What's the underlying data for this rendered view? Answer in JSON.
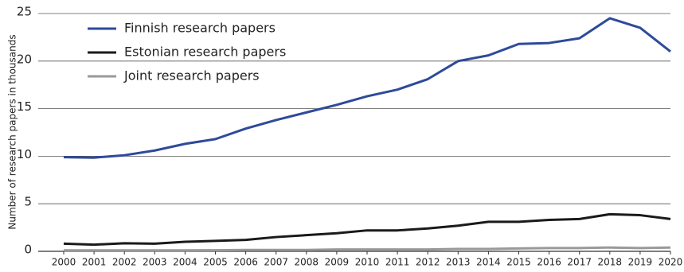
{
  "chart_data": {
    "type": "line",
    "y_label": "Number of research papers in thousands",
    "x": [
      2000,
      2001,
      2002,
      2003,
      2004,
      2005,
      2006,
      2007,
      2008,
      2009,
      2010,
      2011,
      2012,
      2013,
      2014,
      2015,
      2016,
      2017,
      2018,
      2019,
      2020
    ],
    "xlim": [
      2000,
      2020
    ],
    "xticks": [
      2000,
      2001,
      2002,
      2003,
      2004,
      2005,
      2006,
      2007,
      2008,
      2009,
      2010,
      2011,
      2012,
      2013,
      2014,
      2015,
      2016,
      2017,
      2018,
      2019,
      2020
    ],
    "ylim": [
      0,
      25
    ],
    "yticks": [
      0,
      5,
      10,
      15,
      20,
      25
    ],
    "grid": true,
    "legend": "upper left",
    "series": [
      {
        "name": "Finnish research papers",
        "color": "#2e4a9a",
        "values": [
          9.9,
          9.85,
          10.1,
          10.6,
          11.3,
          11.8,
          12.9,
          13.8,
          14.6,
          15.4,
          16.3,
          17.0,
          18.1,
          20.0,
          20.6,
          21.8,
          21.9,
          22.4,
          24.5,
          23.5,
          21.0
        ]
      },
      {
        "name": "Estonian research papers",
        "color": "#1a1a1a",
        "values": [
          0.8,
          0.7,
          0.85,
          0.8,
          1.0,
          1.1,
          1.2,
          1.5,
          1.7,
          1.9,
          2.2,
          2.2,
          2.4,
          2.7,
          3.1,
          3.1,
          3.3,
          3.4,
          3.9,
          3.8,
          3.4
        ]
      },
      {
        "name": "Joint research papers",
        "color": "#999999",
        "values": [
          0.1,
          0.1,
          0.1,
          0.1,
          0.1,
          0.12,
          0.15,
          0.15,
          0.15,
          0.2,
          0.2,
          0.2,
          0.2,
          0.25,
          0.25,
          0.3,
          0.35,
          0.35,
          0.4,
          0.35,
          0.4
        ]
      }
    ]
  }
}
